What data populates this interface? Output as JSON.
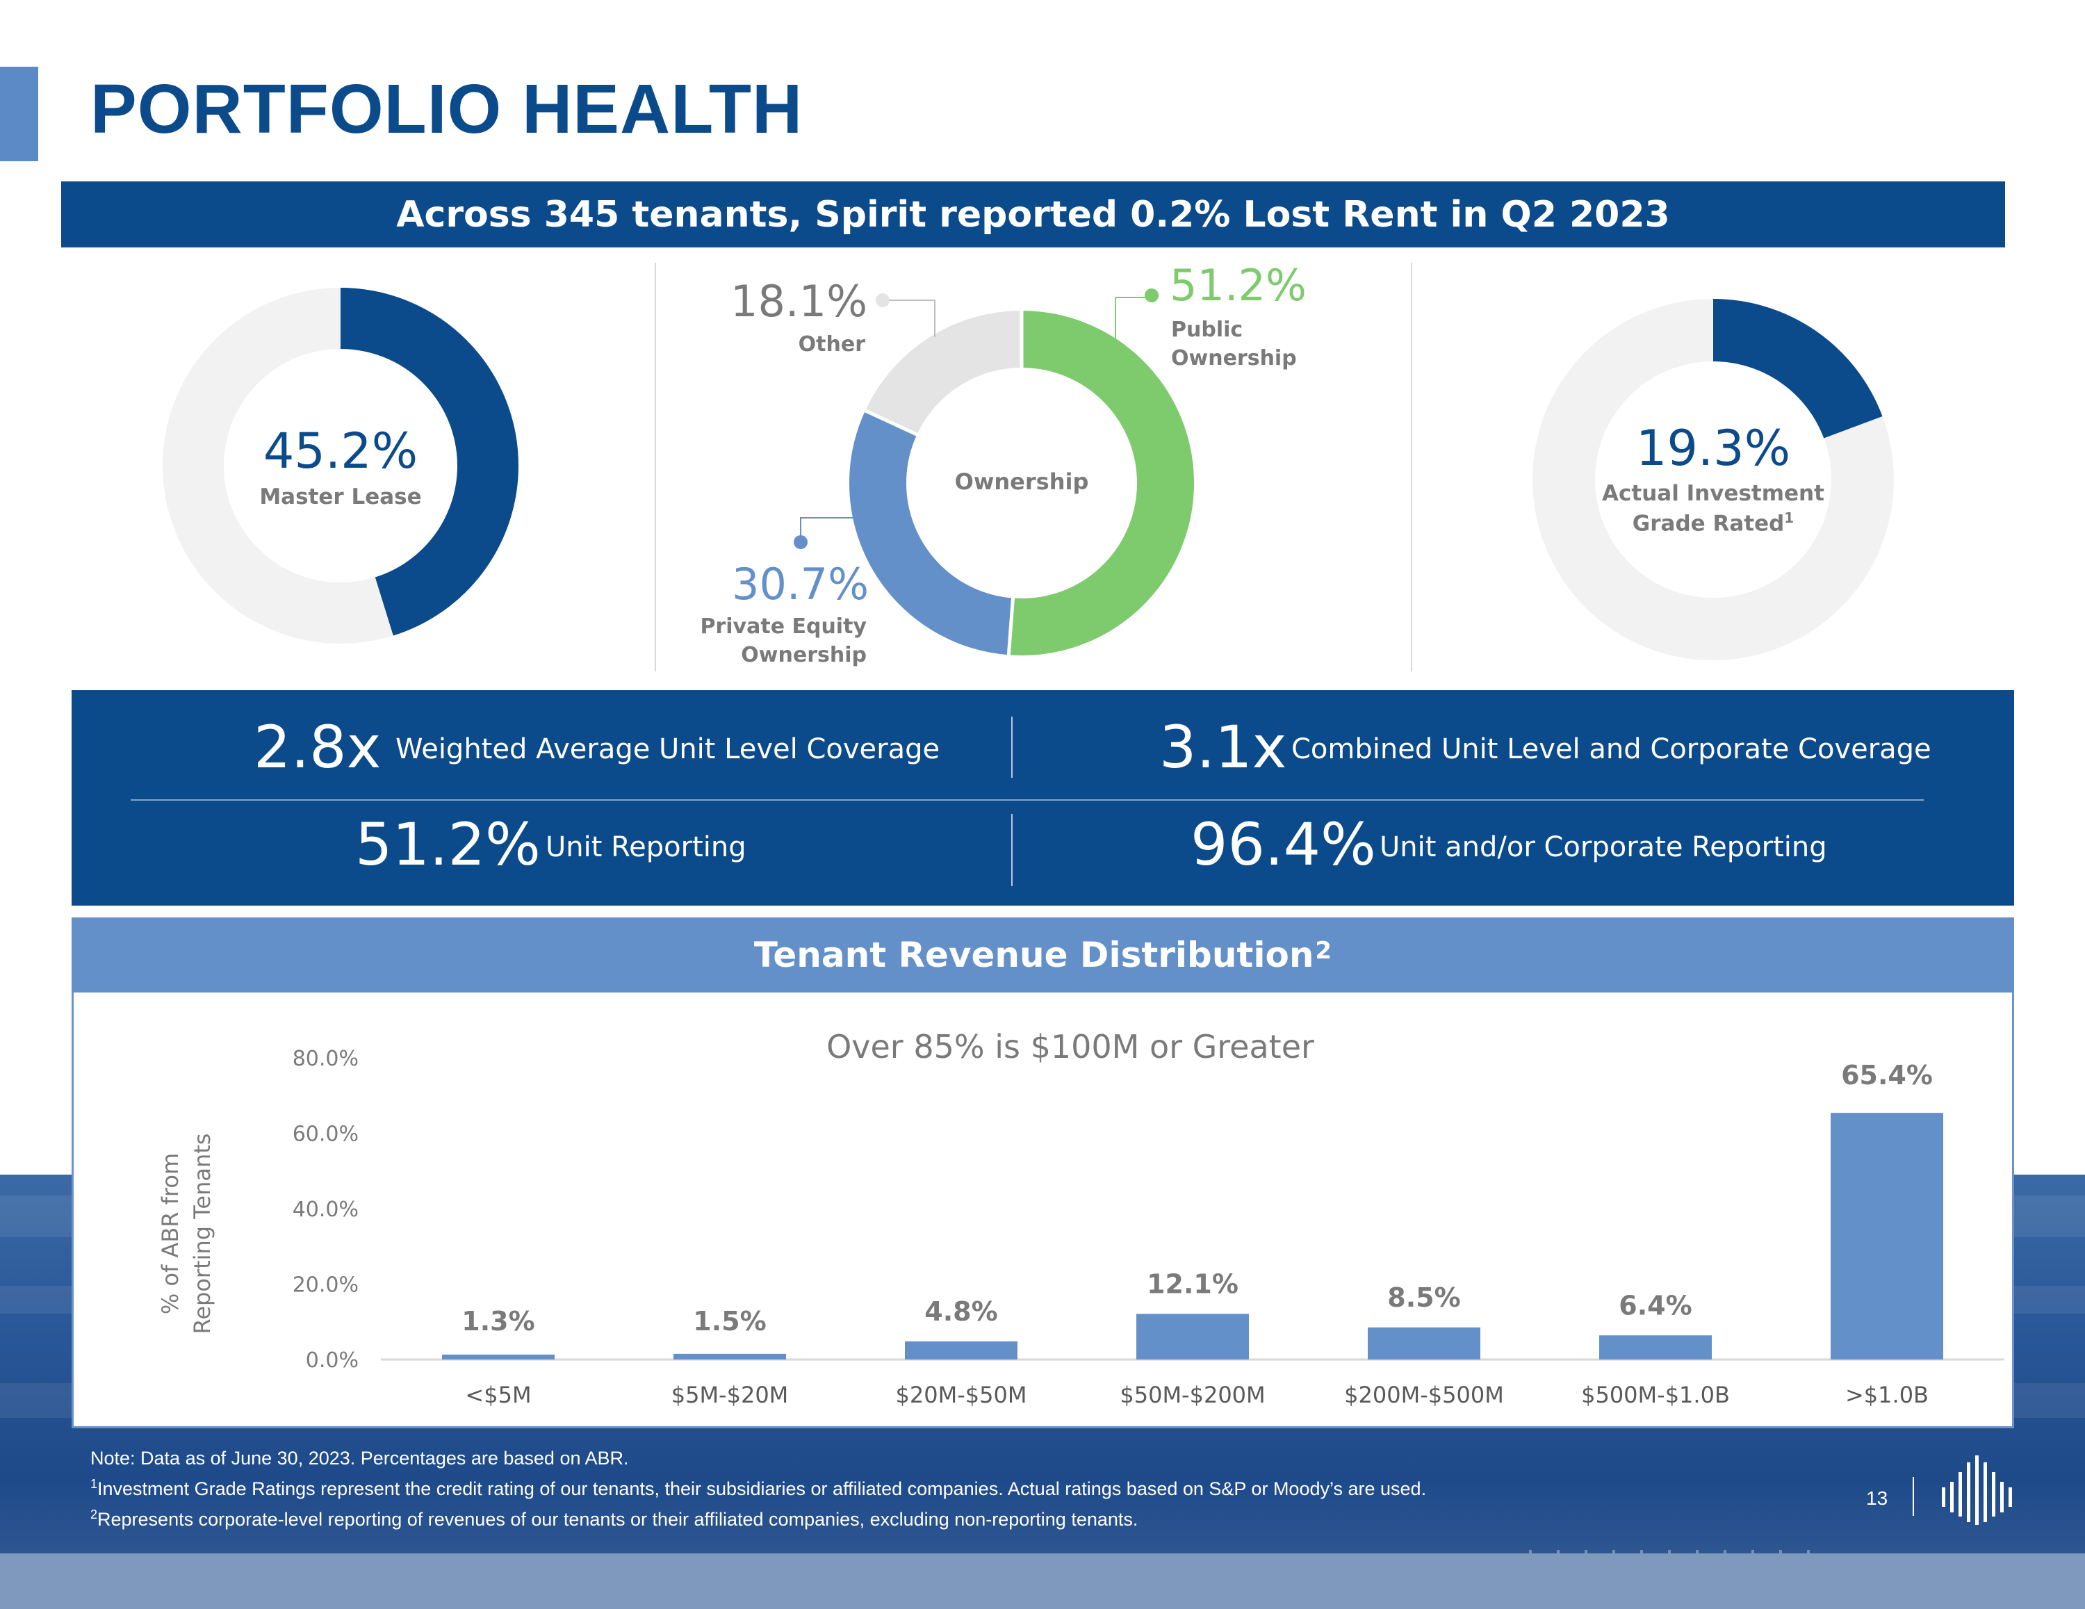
{
  "page": {
    "title": "PORTFOLIO HEALTH",
    "banner": "Across 345 tenants, Spirit reported 0.2% Lost Rent in Q2 2023",
    "page_number": "13"
  },
  "donut_master": {
    "value": "45.2%",
    "label": "Master Lease",
    "fraction": 0.452,
    "color": "#0b4a8b",
    "track": "#f2f2f2"
  },
  "donut_ownership": {
    "center_label": "Ownership",
    "slices": [
      {
        "name": "Public Ownership",
        "value": 51.2,
        "value_text": "51.2%",
        "label_line1": "Public",
        "label_line2": "Ownership",
        "color": "#7dcb6c"
      },
      {
        "name": "Private Equity Ownership",
        "value": 30.7,
        "value_text": "30.7%",
        "label_line1": "Private Equity",
        "label_line2": "Ownership",
        "color": "#6490ca"
      },
      {
        "name": "Other",
        "value": 18.1,
        "value_text": "18.1%",
        "label_line1": "Other",
        "color": "#e4e4e4"
      }
    ]
  },
  "donut_investment": {
    "value": "19.3%",
    "label_line1": "Actual Investment",
    "label_line2": "Grade Rated",
    "footnote": "1",
    "fraction": 0.193,
    "color": "#0b4a8b",
    "track": "#f2f2f2"
  },
  "metrics": [
    {
      "value": "2.8x",
      "label": "Weighted Average Unit Level Coverage"
    },
    {
      "value": "3.1x",
      "label": "Combined Unit Level and Corporate Coverage"
    },
    {
      "value": "51.2%",
      "label": "Unit Reporting"
    },
    {
      "value": "96.4%",
      "label": "Unit and/or Corporate Reporting"
    }
  ],
  "revenue": {
    "header": "Tenant Revenue Distribution",
    "header_footnote": "2"
  },
  "chart_data": {
    "type": "bar",
    "title": "Over 85% is $100M or Greater",
    "xlabel": "",
    "ylabel_line1": "% of ABR from",
    "ylabel_line2": "Reporting Tenants",
    "categories": [
      "<$5M",
      "$5M-$20M",
      "$20M-$50M",
      "$50M-$200M",
      "$200M-$500M",
      "$500M-$1.0B",
      ">$1.0B"
    ],
    "values": [
      1.3,
      1.5,
      4.8,
      12.1,
      8.5,
      6.4,
      65.4
    ],
    "value_labels": [
      "1.3%",
      "1.5%",
      "4.8%",
      "12.1%",
      "8.5%",
      "6.4%",
      "65.4%"
    ],
    "yticks": [
      "0.0%",
      "20.0%",
      "40.0%",
      "60.0%",
      "80.0%"
    ],
    "ytick_values": [
      0,
      20,
      40,
      60,
      80
    ],
    "ylim": [
      0,
      80
    ],
    "grid": false,
    "bar_color": "#6490ca"
  },
  "notes": {
    "line1": "Note: Data as of June 30, 2023. Percentages are based on ABR.",
    "line2_mark": "1",
    "line2": "Investment Grade Ratings represent the credit rating of our tenants, their subsidiaries or affiliated companies. Actual ratings based on S&P or Moody’s are used.",
    "line3_mark": "2",
    "line3": "Represents corporate-level reporting of revenues of our tenants or their affiliated companies, excluding non-reporting tenants."
  }
}
